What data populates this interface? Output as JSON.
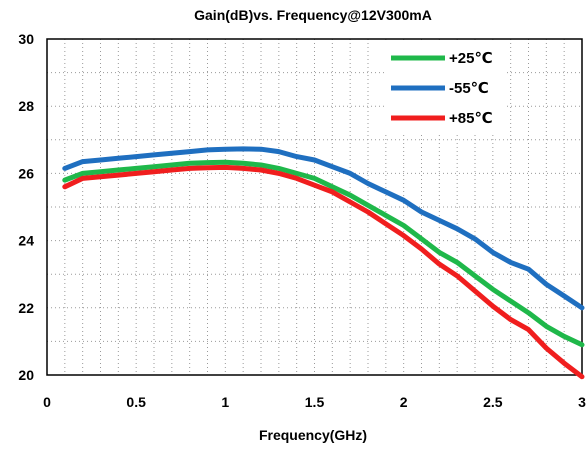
{
  "chart_data": {
    "type": "line",
    "title": "Gain(dB)vs. Frequency@12V300mA",
    "xlabel": "Frequency(GHz)",
    "ylabel": "",
    "xlim": [
      0,
      3
    ],
    "ylim": [
      20,
      30
    ],
    "x_ticks": [
      "0",
      "0.5",
      "1",
      "1.5",
      "2",
      "2.5",
      "3"
    ],
    "y_ticks": [
      "20",
      "22",
      "24",
      "26",
      "28",
      "30"
    ],
    "grid": "dotted",
    "legend_position": "top-right",
    "x": [
      0.1,
      0.2,
      0.3,
      0.4,
      0.5,
      0.6,
      0.7,
      0.8,
      0.9,
      1.0,
      1.1,
      1.2,
      1.3,
      1.4,
      1.5,
      1.6,
      1.7,
      1.8,
      1.9,
      2.0,
      2.1,
      2.2,
      2.3,
      2.4,
      2.5,
      2.6,
      2.7,
      2.8,
      2.9,
      3.0
    ],
    "series": [
      {
        "name": "+25℃",
        "color": "#1fb84a",
        "values": [
          25.8,
          26.0,
          26.05,
          26.1,
          26.15,
          26.2,
          26.25,
          26.3,
          26.32,
          26.33,
          26.3,
          26.25,
          26.15,
          26.0,
          25.85,
          25.6,
          25.35,
          25.05,
          24.75,
          24.45,
          24.05,
          23.65,
          23.35,
          22.95,
          22.55,
          22.2,
          21.85,
          21.45,
          21.15,
          20.9
        ]
      },
      {
        "name": "-55℃",
        "color": "#1f6fc0",
        "values": [
          26.15,
          26.35,
          26.4,
          26.45,
          26.5,
          26.55,
          26.6,
          26.65,
          26.7,
          26.72,
          26.73,
          26.72,
          26.65,
          26.5,
          26.4,
          26.2,
          26.0,
          25.7,
          25.45,
          25.2,
          24.85,
          24.6,
          24.35,
          24.05,
          23.65,
          23.35,
          23.15,
          22.7,
          22.35,
          22.0
        ]
      },
      {
        "name": "+85℃",
        "color": "#f01e1e",
        "values": [
          25.6,
          25.85,
          25.9,
          25.95,
          26.0,
          26.05,
          26.1,
          26.15,
          26.17,
          26.18,
          26.15,
          26.1,
          26.0,
          25.85,
          25.65,
          25.45,
          25.15,
          24.85,
          24.5,
          24.15,
          23.75,
          23.3,
          22.95,
          22.5,
          22.05,
          21.65,
          21.35,
          20.8,
          20.35,
          19.95
        ]
      }
    ]
  }
}
